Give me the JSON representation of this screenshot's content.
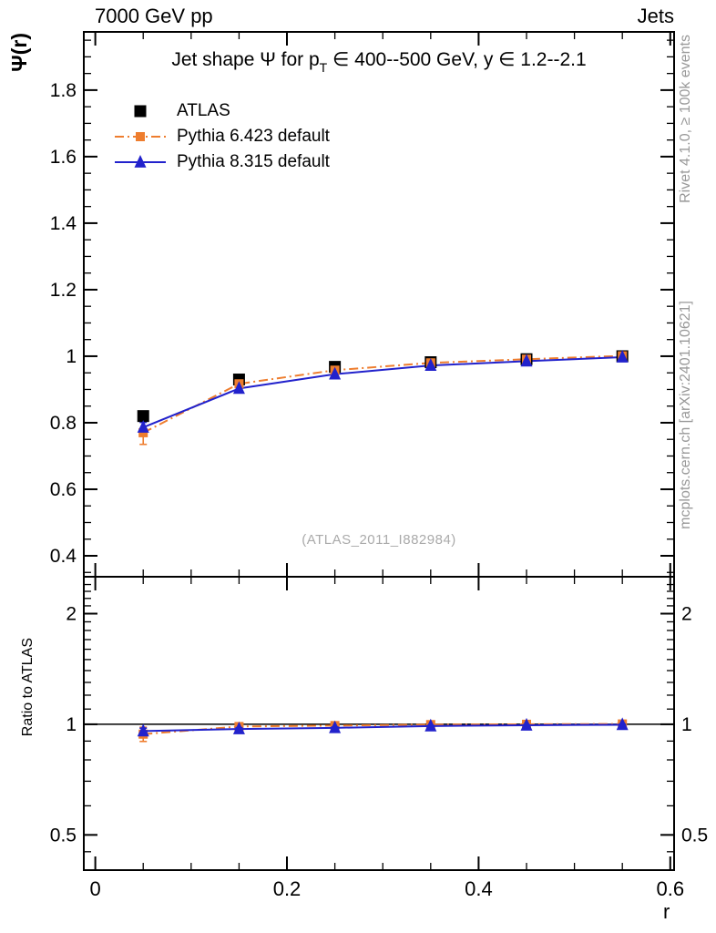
{
  "header": {
    "left_label": "7000 GeV pp",
    "right_label": "Jets"
  },
  "side_notes": {
    "rivet": "Rivet 4.1.0, ≥ 100k events",
    "mcplots": "mcplots.cern.ch [arXiv:2401.10621]"
  },
  "watermark": "(ATLAS_2011_I882984)",
  "chart_data": {
    "type": "line",
    "title": "Jet shape Ψ for p_T ∈ 400--500 GeV, y ∈ 1.2--2.1",
    "title_parts": {
      "pre": "Jet shape Ψ for p",
      "sub": "T",
      "post": " ∈ 400--500 GeV, y ∈ 1.2--2.1"
    },
    "ylabel": "Ψ(r)",
    "xlabel": "r",
    "ratio_ylabel": "Ratio to ATLAS",
    "legend_position": "top-left",
    "grid": false,
    "x": [
      0.05,
      0.15,
      0.25,
      0.35,
      0.45,
      0.55
    ],
    "series": [
      {
        "name": "ATLAS",
        "color": "#000000",
        "marker": "square",
        "marker_size": 13,
        "line": "none",
        "values": [
          0.82,
          0.93,
          0.968,
          0.982,
          0.991,
          1.0
        ],
        "errors": [
          0.012,
          0.007,
          0.005,
          0.004,
          0.003,
          0.002
        ],
        "ratio": null
      },
      {
        "name": "Pythia 6.423 default",
        "color": "#ee7d2e",
        "marker": "square",
        "marker_size": 10,
        "line": "dashdot",
        "values": [
          0.77,
          0.917,
          0.958,
          0.98,
          0.991,
          1.001
        ],
        "errors": [
          0.035,
          0.01,
          0.006,
          0.004,
          0.003,
          0.002
        ],
        "ratio": [
          0.94,
          0.986,
          0.992,
          0.998,
          1.0,
          1.002
        ],
        "ratio_errors": [
          0.042,
          0.012,
          0.007,
          0.005,
          0.004,
          0.003
        ]
      },
      {
        "name": "Pythia 8.315 default",
        "color": "#2222cc",
        "marker": "triangle",
        "marker_size": 13,
        "line": "solid",
        "values": [
          0.786,
          0.903,
          0.946,
          0.972,
          0.985,
          0.997
        ],
        "errors": [
          0.015,
          0.006,
          0.004,
          0.003,
          0.002,
          0.002
        ],
        "ratio": [
          0.958,
          0.971,
          0.978,
          0.989,
          0.994,
          0.997
        ],
        "ratio_errors": [
          0.018,
          0.008,
          0.005,
          0.004,
          0.003,
          0.003
        ]
      }
    ],
    "x_axis": {
      "range": [
        -0.012,
        0.604
      ],
      "major_ticks": [
        0,
        0.2,
        0.4,
        0.6
      ],
      "major_labels": [
        "0",
        "0.2",
        "0.4",
        "0.6"
      ],
      "minor_step": 0.05
    },
    "top_axis": {
      "scale": "linear",
      "range": [
        0.337,
        1.975
      ],
      "major_ticks": [
        0.4,
        0.6,
        0.8,
        1,
        1.2,
        1.4,
        1.6,
        1.8
      ],
      "major_labels": [
        "0.4",
        "0.6",
        "0.8",
        "1",
        "1.2",
        "1.4",
        "1.6",
        "1.8"
      ],
      "minor_step": 0.05
    },
    "ratio_axis": {
      "scale": "log",
      "range": [
        0.401,
        2.52
      ],
      "major_ticks": [
        0.5,
        1,
        2
      ],
      "major_labels": [
        "0.5",
        "1",
        "2"
      ],
      "minor_ticks": [
        0.45,
        0.6,
        0.7,
        0.8,
        0.9,
        1.1,
        1.2,
        1.3,
        1.4,
        1.5,
        1.6,
        1.7,
        1.8,
        1.9,
        2.1,
        2.2,
        2.3,
        2.4,
        2.5
      ],
      "reference_line": 1
    }
  }
}
